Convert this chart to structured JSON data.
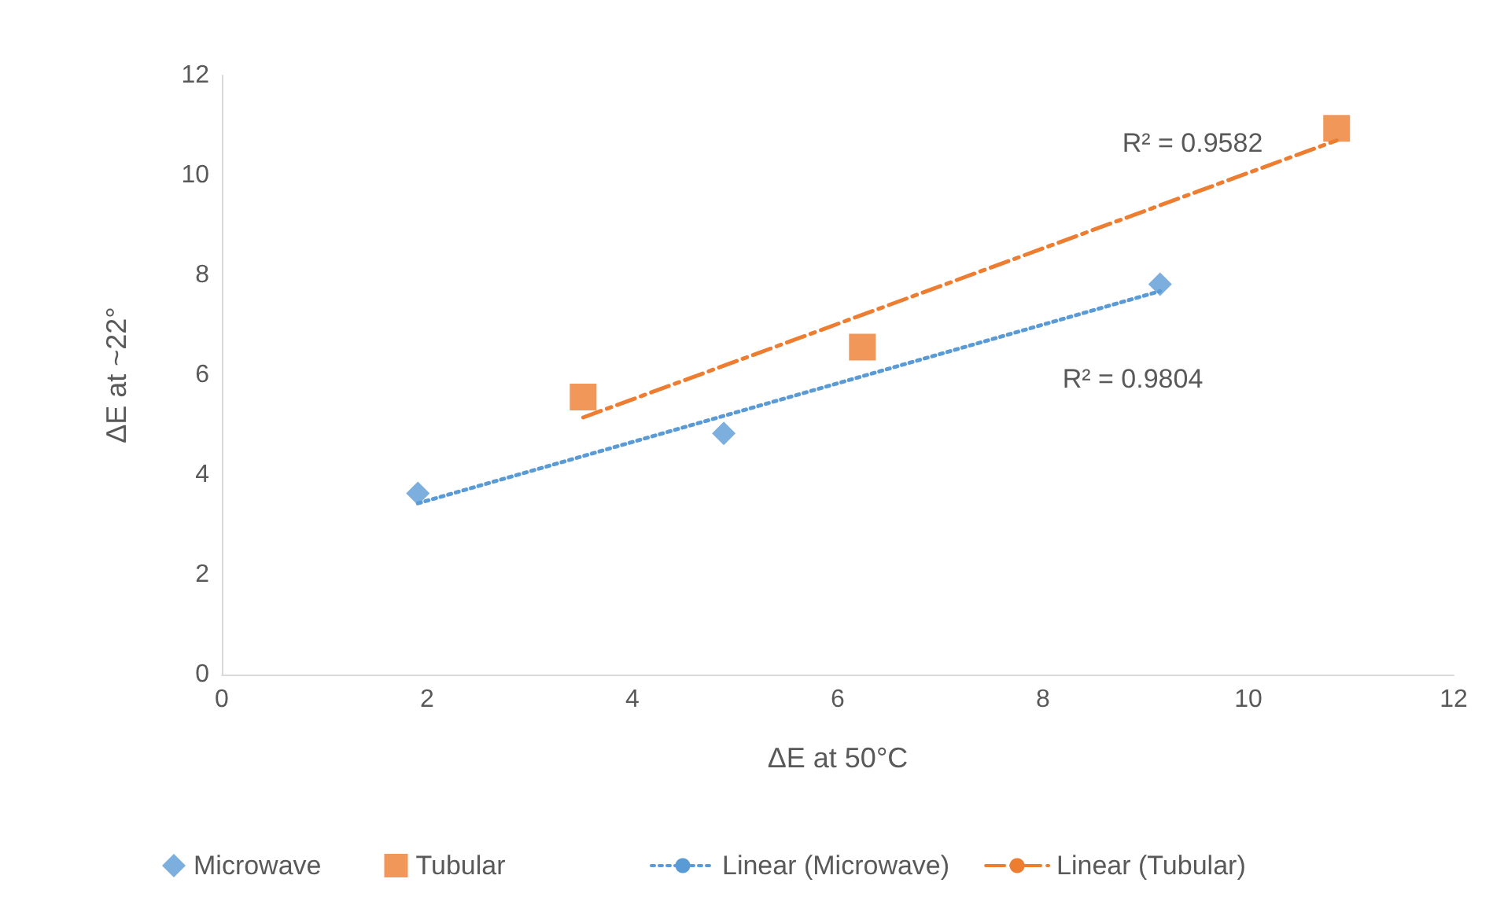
{
  "chart_data": {
    "type": "scatter",
    "xlabel": "ΔE at 50°C",
    "ylabel": "ΔE at ~22°",
    "xlim": [
      0,
      12
    ],
    "xticks": [
      0,
      2,
      4,
      6,
      8,
      10,
      12
    ],
    "ylim": [
      0,
      12
    ],
    "yticks": [
      0,
      2,
      4,
      6,
      8,
      10,
      12
    ],
    "grid": false,
    "legend": "bottom",
    "series": [
      {
        "name": "Microwave",
        "color": "#5b9bd5",
        "marker": "diamond",
        "x": [
          1.91,
          4.89,
          9.14
        ],
        "values": [
          3.63,
          4.83,
          7.82
        ]
      },
      {
        "name": "Tubular",
        "color": "#ed7d31",
        "marker": "square",
        "x": [
          3.52,
          6.24,
          10.86
        ],
        "values": [
          5.56,
          6.56,
          10.94
        ]
      },
      {
        "name": "Linear (Microwave)",
        "type": "line",
        "color": "#5b9bd5",
        "marker": "none",
        "line_style": "dotted",
        "x": [
          1.91,
          9.14
        ],
        "values": [
          3.43,
          7.68
        ]
      },
      {
        "name": "Linear (Tubular)",
        "type": "line",
        "color": "#ed7d31",
        "marker": "none",
        "line_style": "dashed",
        "x": [
          3.52,
          10.86
        ],
        "values": [
          5.15,
          10.7
        ]
      }
    ],
    "annotations": [
      "R² = 0.9582",
      "R² = 0.9804"
    ]
  }
}
